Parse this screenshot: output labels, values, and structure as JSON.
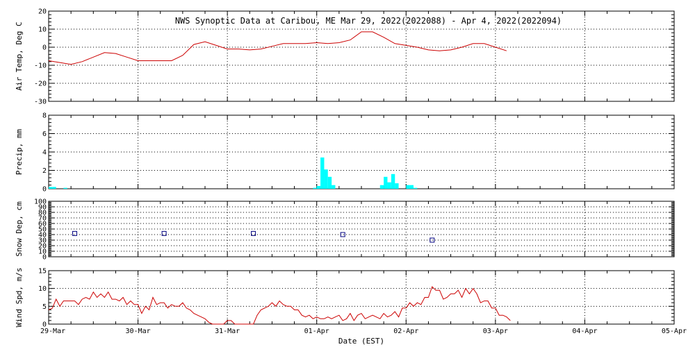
{
  "chart_data": {
    "title": "NWS Synoptic Data at Caribou, ME   Mar 29, 2022(2022088) - Apr  4, 2022(2022094)",
    "xlabel": "Date (EST)",
    "x_type": "date",
    "xlim": [
      "2022-03-29T00:00",
      "2022-04-05T00:00"
    ],
    "x_ticks": [
      {
        "label": "29-Mar",
        "value": "2022-03-29T00:00"
      },
      {
        "label": "30-Mar",
        "value": "2022-03-30T00:00"
      },
      {
        "label": "31-Mar",
        "value": "2022-03-31T00:00"
      },
      {
        "label": "01-Apr",
        "value": "2022-04-01T00:00"
      },
      {
        "label": "02-Apr",
        "value": "2022-04-02T00:00"
      },
      {
        "label": "03-Apr",
        "value": "2022-04-03T00:00"
      },
      {
        "label": "04-Apr",
        "value": "2022-04-04T00:00"
      },
      {
        "label": "05-Apr",
        "value": "2022-04-05T00:00"
      }
    ],
    "panels": [
      {
        "type": "line",
        "ylabel": "Air Temp, Deg C",
        "ylim": [
          -30,
          20
        ],
        "yticks": [
          -30,
          -20,
          -10,
          0,
          10,
          20
        ],
        "grid": true,
        "color": "#cc0000",
        "points": [
          [
            "2022-03-29T00:00",
            -7.5
          ],
          [
            "2022-03-29T03:00",
            -8.5
          ],
          [
            "2022-03-29T06:00",
            -9.5
          ],
          [
            "2022-03-29T09:00",
            -8
          ],
          [
            "2022-03-29T12:00",
            -5.5
          ],
          [
            "2022-03-29T15:00",
            -3
          ],
          [
            "2022-03-29T18:00",
            -3.5
          ],
          [
            "2022-03-29T21:00",
            -5.5
          ],
          [
            "2022-03-30T00:00",
            -7.5
          ],
          [
            "2022-03-30T03:00",
            -7.5
          ],
          [
            "2022-03-30T06:00",
            -7.5
          ],
          [
            "2022-03-30T09:00",
            -7.5
          ],
          [
            "2022-03-30T12:00",
            -4.5
          ],
          [
            "2022-03-30T15:00",
            1.5
          ],
          [
            "2022-03-30T18:00",
            3
          ],
          [
            "2022-03-30T21:00",
            1
          ],
          [
            "2022-03-31T00:00",
            -1
          ],
          [
            "2022-03-31T03:00",
            -1
          ],
          [
            "2022-03-31T06:00",
            -1.5
          ],
          [
            "2022-03-31T09:00",
            -1
          ],
          [
            "2022-03-31T12:00",
            0.5
          ],
          [
            "2022-03-31T15:00",
            2
          ],
          [
            "2022-03-31T18:00",
            2
          ],
          [
            "2022-03-31T21:00",
            2
          ],
          [
            "2022-04-01T00:00",
            2.5
          ],
          [
            "2022-04-01T03:00",
            2
          ],
          [
            "2022-04-01T06:00",
            2.5
          ],
          [
            "2022-04-01T09:00",
            4
          ],
          [
            "2022-04-01T12:00",
            8.5
          ],
          [
            "2022-04-01T15:00",
            8.5
          ],
          [
            "2022-04-01T18:00",
            5.5
          ],
          [
            "2022-04-01T21:00",
            2
          ],
          [
            "2022-04-02T00:00",
            1
          ],
          [
            "2022-04-02T03:00",
            0
          ],
          [
            "2022-04-02T06:00",
            -1.5
          ],
          [
            "2022-04-02T09:00",
            -2
          ],
          [
            "2022-04-02T12:00",
            -1.5
          ],
          [
            "2022-04-02T15:00",
            0
          ],
          [
            "2022-04-02T18:00",
            2
          ],
          [
            "2022-04-02T21:00",
            2
          ],
          [
            "2022-04-03T00:00",
            0
          ],
          [
            "2022-04-03T03:00",
            -2
          ]
        ]
      },
      {
        "type": "bar",
        "ylabel": "Precip, mm",
        "ylim": [
          0,
          8
        ],
        "yticks": [
          0,
          2,
          4,
          6,
          8
        ],
        "grid": true,
        "color": "#00ffff",
        "bar_hours": 1,
        "points": [
          [
            "2022-03-29T00:00",
            0.2
          ],
          [
            "2022-03-29T01:00",
            0.2
          ],
          [
            "2022-03-29T04:00",
            0.1
          ],
          [
            "2022-03-31T23:00",
            0.1
          ],
          [
            "2022-04-01T00:00",
            0.3
          ],
          [
            "2022-04-01T01:00",
            3.4
          ],
          [
            "2022-04-01T02:00",
            2.1
          ],
          [
            "2022-04-01T03:00",
            1.3
          ],
          [
            "2022-04-01T04:00",
            0.4
          ],
          [
            "2022-04-01T17:00",
            0.4
          ],
          [
            "2022-04-01T18:00",
            1.3
          ],
          [
            "2022-04-01T19:00",
            0.7
          ],
          [
            "2022-04-01T20:00",
            1.6
          ],
          [
            "2022-04-01T21:00",
            0.6
          ],
          [
            "2022-04-02T00:00",
            0.4
          ],
          [
            "2022-04-02T01:00",
            0.4
          ],
          [
            "2022-04-02T02:00",
            0.1
          ]
        ]
      },
      {
        "type": "scatter",
        "ylabel": "Snow Dep, cm",
        "ylim": [
          0,
          100
        ],
        "yticks": [
          0,
          10,
          20,
          30,
          40,
          50,
          60,
          70,
          80,
          90,
          100
        ],
        "grid": true,
        "color": "#000080",
        "points": [
          [
            "2022-03-29T07:00",
            42
          ],
          [
            "2022-03-30T07:00",
            42
          ],
          [
            "2022-03-31T07:00",
            42
          ],
          [
            "2022-04-01T07:00",
            40
          ],
          [
            "2022-04-02T07:00",
            30
          ]
        ]
      },
      {
        "type": "line",
        "ylabel": "Wind Spd, m/s",
        "ylim": [
          0,
          15
        ],
        "yticks": [
          0,
          5,
          10,
          15
        ],
        "grid": true,
        "color": "#cc0000",
        "points": [
          [
            "2022-03-29T00:00",
            4
          ],
          [
            "2022-03-29T01:00",
            4.5
          ],
          [
            "2022-03-29T02:00",
            7
          ],
          [
            "2022-03-29T03:00",
            5
          ],
          [
            "2022-03-29T04:00",
            6.5
          ],
          [
            "2022-03-29T05:00",
            6.5
          ],
          [
            "2022-03-29T06:00",
            6.5
          ],
          [
            "2022-03-29T07:00",
            6.5
          ],
          [
            "2022-03-29T08:00",
            5.5
          ],
          [
            "2022-03-29T09:00",
            7
          ],
          [
            "2022-03-29T10:00",
            7.5
          ],
          [
            "2022-03-29T11:00",
            7
          ],
          [
            "2022-03-29T12:00",
            9
          ],
          [
            "2022-03-29T13:00",
            7.5
          ],
          [
            "2022-03-29T14:00",
            8.5
          ],
          [
            "2022-03-29T15:00",
            7.5
          ],
          [
            "2022-03-29T16:00",
            9
          ],
          [
            "2022-03-29T17:00",
            7
          ],
          [
            "2022-03-29T18:00",
            7
          ],
          [
            "2022-03-29T19:00",
            6.5
          ],
          [
            "2022-03-29T20:00",
            7.5
          ],
          [
            "2022-03-29T21:00",
            5.5
          ],
          [
            "2022-03-29T22:00",
            6.5
          ],
          [
            "2022-03-29T23:00",
            5.5
          ],
          [
            "2022-03-30T00:00",
            5.5
          ],
          [
            "2022-03-30T01:00",
            3
          ],
          [
            "2022-03-30T02:00",
            5
          ],
          [
            "2022-03-30T03:00",
            4
          ],
          [
            "2022-03-30T04:00",
            7.5
          ],
          [
            "2022-03-30T05:00",
            5.5
          ],
          [
            "2022-03-30T06:00",
            6
          ],
          [
            "2022-03-30T07:00",
            6
          ],
          [
            "2022-03-30T08:00",
            4.5
          ],
          [
            "2022-03-30T09:00",
            5.5
          ],
          [
            "2022-03-30T10:00",
            5
          ],
          [
            "2022-03-30T11:00",
            5
          ],
          [
            "2022-03-30T12:00",
            6
          ],
          [
            "2022-03-30T13:00",
            4.5
          ],
          [
            "2022-03-30T14:00",
            4
          ],
          [
            "2022-03-30T15:00",
            3
          ],
          [
            "2022-03-30T16:00",
            2.5
          ],
          [
            "2022-03-30T17:00",
            2
          ],
          [
            "2022-03-30T18:00",
            1.5
          ],
          [
            "2022-03-30T19:00",
            0.5
          ],
          [
            "2022-03-30T20:00",
            0
          ],
          [
            "2022-03-30T21:00",
            0
          ],
          [
            "2022-03-30T22:00",
            0
          ],
          [
            "2022-03-30T23:00",
            0
          ],
          [
            "2022-03-31T00:00",
            1
          ],
          [
            "2022-03-31T01:00",
            1
          ],
          [
            "2022-03-31T02:00",
            0
          ],
          [
            "2022-03-31T03:00",
            0
          ],
          [
            "2022-03-31T04:00",
            0
          ],
          [
            "2022-03-31T05:00",
            0
          ],
          [
            "2022-03-31T06:00",
            0
          ],
          [
            "2022-03-31T07:00",
            0
          ],
          [
            "2022-03-31T08:00",
            2.5
          ],
          [
            "2022-03-31T09:00",
            4
          ],
          [
            "2022-03-31T10:00",
            4.5
          ],
          [
            "2022-03-31T11:00",
            5
          ],
          [
            "2022-03-31T12:00",
            6
          ],
          [
            "2022-03-31T13:00",
            5
          ],
          [
            "2022-03-31T14:00",
            6.5
          ],
          [
            "2022-03-31T15:00",
            5.5
          ],
          [
            "2022-03-31T16:00",
            5
          ],
          [
            "2022-03-31T17:00",
            5
          ],
          [
            "2022-03-31T18:00",
            4
          ],
          [
            "2022-03-31T19:00",
            4
          ],
          [
            "2022-03-31T20:00",
            2.5
          ],
          [
            "2022-03-31T21:00",
            2
          ],
          [
            "2022-03-31T22:00",
            2.5
          ],
          [
            "2022-03-31T23:00",
            1.5
          ],
          [
            "2022-04-01T00:00",
            2
          ],
          [
            "2022-04-01T01:00",
            1.5
          ],
          [
            "2022-04-01T02:00",
            1.5
          ],
          [
            "2022-04-01T03:00",
            2
          ],
          [
            "2022-04-01T04:00",
            1.5
          ],
          [
            "2022-04-01T05:00",
            2
          ],
          [
            "2022-04-01T06:00",
            2.5
          ],
          [
            "2022-04-01T07:00",
            1
          ],
          [
            "2022-04-01T08:00",
            1.5
          ],
          [
            "2022-04-01T09:00",
            3
          ],
          [
            "2022-04-01T10:00",
            1
          ],
          [
            "2022-04-01T11:00",
            2.5
          ],
          [
            "2022-04-01T12:00",
            3
          ],
          [
            "2022-04-01T13:00",
            1.5
          ],
          [
            "2022-04-01T14:00",
            2
          ],
          [
            "2022-04-01T15:00",
            2.5
          ],
          [
            "2022-04-01T16:00",
            2
          ],
          [
            "2022-04-01T17:00",
            1.5
          ],
          [
            "2022-04-01T18:00",
            3
          ],
          [
            "2022-04-01T19:00",
            2
          ],
          [
            "2022-04-01T20:00",
            2.5
          ],
          [
            "2022-04-01T21:00",
            3.5
          ],
          [
            "2022-04-01T22:00",
            2
          ],
          [
            "2022-04-01T23:00",
            4.5
          ],
          [
            "2022-04-02T00:00",
            4.5
          ],
          [
            "2022-04-02T01:00",
            6
          ],
          [
            "2022-04-02T02:00",
            5
          ],
          [
            "2022-04-02T03:00",
            6
          ],
          [
            "2022-04-02T04:00",
            5.5
          ],
          [
            "2022-04-02T05:00",
            7.5
          ],
          [
            "2022-04-02T06:00",
            7.5
          ],
          [
            "2022-04-02T07:00",
            10.5
          ],
          [
            "2022-04-02T08:00",
            9.5
          ],
          [
            "2022-04-02T09:00",
            9.5
          ],
          [
            "2022-04-02T10:00",
            7
          ],
          [
            "2022-04-02T11:00",
            7.5
          ],
          [
            "2022-04-02T12:00",
            8.5
          ],
          [
            "2022-04-02T13:00",
            8.5
          ],
          [
            "2022-04-02T14:00",
            9.5
          ],
          [
            "2022-04-02T15:00",
            7.5
          ],
          [
            "2022-04-02T16:00",
            10
          ],
          [
            "2022-04-02T17:00",
            8.5
          ],
          [
            "2022-04-02T18:00",
            10
          ],
          [
            "2022-04-02T19:00",
            8.5
          ],
          [
            "2022-04-02T20:00",
            6
          ],
          [
            "2022-04-02T21:00",
            6.5
          ],
          [
            "2022-04-02T22:00",
            6.5
          ],
          [
            "2022-04-02T23:00",
            4.5
          ],
          [
            "2022-04-03T00:00",
            4.5
          ],
          [
            "2022-04-03T01:00",
            2.5
          ],
          [
            "2022-04-03T02:00",
            2.5
          ],
          [
            "2022-04-03T03:00",
            2
          ],
          [
            "2022-04-03T04:00",
            1
          ]
        ]
      }
    ]
  }
}
